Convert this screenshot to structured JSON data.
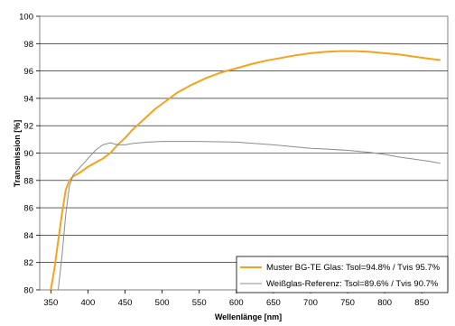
{
  "chart_data": {
    "type": "line",
    "title": "",
    "xlabel": "Wellenlänge [nm]",
    "ylabel": "Transmission [%]",
    "xlim": [
      335,
      885
    ],
    "ylim": [
      80,
      100
    ],
    "x_ticks": [
      350,
      400,
      450,
      500,
      550,
      600,
      650,
      700,
      750,
      800,
      850
    ],
    "y_ticks": [
      80,
      82,
      84,
      86,
      88,
      90,
      92,
      94,
      96,
      98,
      100
    ],
    "grid": "horizontal",
    "legend_position": "bottom-right",
    "series": [
      {
        "name": "Muster BG-TE Glas: Tsol=94.8% / Tvis 95.7%",
        "color": "#f7a21c",
        "points": [
          [
            350,
            80.0
          ],
          [
            355,
            81.6
          ],
          [
            360,
            83.6
          ],
          [
            365,
            85.6
          ],
          [
            370,
            87.3
          ],
          [
            375,
            88.0
          ],
          [
            380,
            88.3
          ],
          [
            390,
            88.6
          ],
          [
            400,
            89.0
          ],
          [
            410,
            89.3
          ],
          [
            420,
            89.6
          ],
          [
            430,
            90.0
          ],
          [
            440,
            90.6
          ],
          [
            450,
            91.1
          ],
          [
            460,
            91.7
          ],
          [
            470,
            92.2
          ],
          [
            480,
            92.7
          ],
          [
            490,
            93.2
          ],
          [
            500,
            93.6
          ],
          [
            520,
            94.4
          ],
          [
            540,
            95.0
          ],
          [
            560,
            95.5
          ],
          [
            580,
            95.9
          ],
          [
            600,
            96.2
          ],
          [
            620,
            96.5
          ],
          [
            640,
            96.75
          ],
          [
            660,
            96.95
          ],
          [
            680,
            97.15
          ],
          [
            700,
            97.3
          ],
          [
            720,
            97.4
          ],
          [
            740,
            97.45
          ],
          [
            760,
            97.45
          ],
          [
            780,
            97.4
          ],
          [
            800,
            97.3
          ],
          [
            820,
            97.2
          ],
          [
            840,
            97.05
          ],
          [
            860,
            96.9
          ],
          [
            875,
            96.8
          ]
        ]
      },
      {
        "name": "Weißglas-Referenz: Tsol=89.6% / Tvis 90.7%",
        "color": "#8c8c8c",
        "points": [
          [
            360,
            80.0
          ],
          [
            365,
            82.5
          ],
          [
            370,
            85.5
          ],
          [
            375,
            87.6
          ],
          [
            380,
            88.4
          ],
          [
            390,
            89.0
          ],
          [
            400,
            89.6
          ],
          [
            410,
            90.2
          ],
          [
            420,
            90.6
          ],
          [
            430,
            90.75
          ],
          [
            440,
            90.6
          ],
          [
            450,
            90.6
          ],
          [
            460,
            90.7
          ],
          [
            480,
            90.8
          ],
          [
            500,
            90.85
          ],
          [
            550,
            90.85
          ],
          [
            600,
            90.8
          ],
          [
            650,
            90.6
          ],
          [
            700,
            90.35
          ],
          [
            720,
            90.3
          ],
          [
            750,
            90.2
          ],
          [
            780,
            90.05
          ],
          [
            800,
            89.9
          ],
          [
            820,
            89.7
          ],
          [
            840,
            89.55
          ],
          [
            860,
            89.4
          ],
          [
            875,
            89.25
          ]
        ]
      }
    ]
  }
}
